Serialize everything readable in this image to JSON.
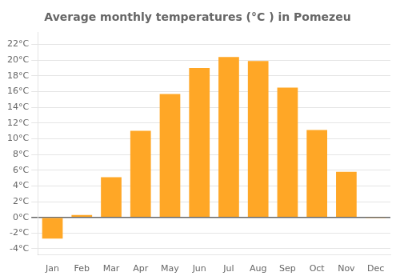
{
  "chart_data": {
    "type": "bar",
    "title": "Average monthly temperatures (°C ) in Pomezeu",
    "categories": [
      "Jan",
      "Feb",
      "Mar",
      "Apr",
      "May",
      "Jun",
      "Jul",
      "Aug",
      "Sep",
      "Oct",
      "Nov",
      "Dec"
    ],
    "values": [
      -2.7,
      0.3,
      5.1,
      11.0,
      15.7,
      19.0,
      20.4,
      19.9,
      16.5,
      11.1,
      5.8,
      -0.1
    ],
    "color": "#FFA726",
    "ylim": [
      -4.8,
      23.5
    ],
    "yticks": [
      {
        "value": -4,
        "label": "-4°C"
      },
      {
        "value": -2,
        "label": "-2°C"
      },
      {
        "value": 0,
        "label": "0°C"
      },
      {
        "value": 2,
        "label": "2°C"
      },
      {
        "value": 4,
        "label": "4°C"
      },
      {
        "value": 6,
        "label": "6°C"
      },
      {
        "value": 8,
        "label": "8°C"
      },
      {
        "value": 10,
        "label": "10°C"
      },
      {
        "value": 12,
        "label": "12°C"
      },
      {
        "value": 14,
        "label": "14°C"
      },
      {
        "value": 16,
        "label": "16°C"
      },
      {
        "value": 18,
        "label": "18°C"
      },
      {
        "value": 20,
        "label": "20°C"
      },
      {
        "value": 22,
        "label": "22°C"
      }
    ],
    "grid": true
  }
}
